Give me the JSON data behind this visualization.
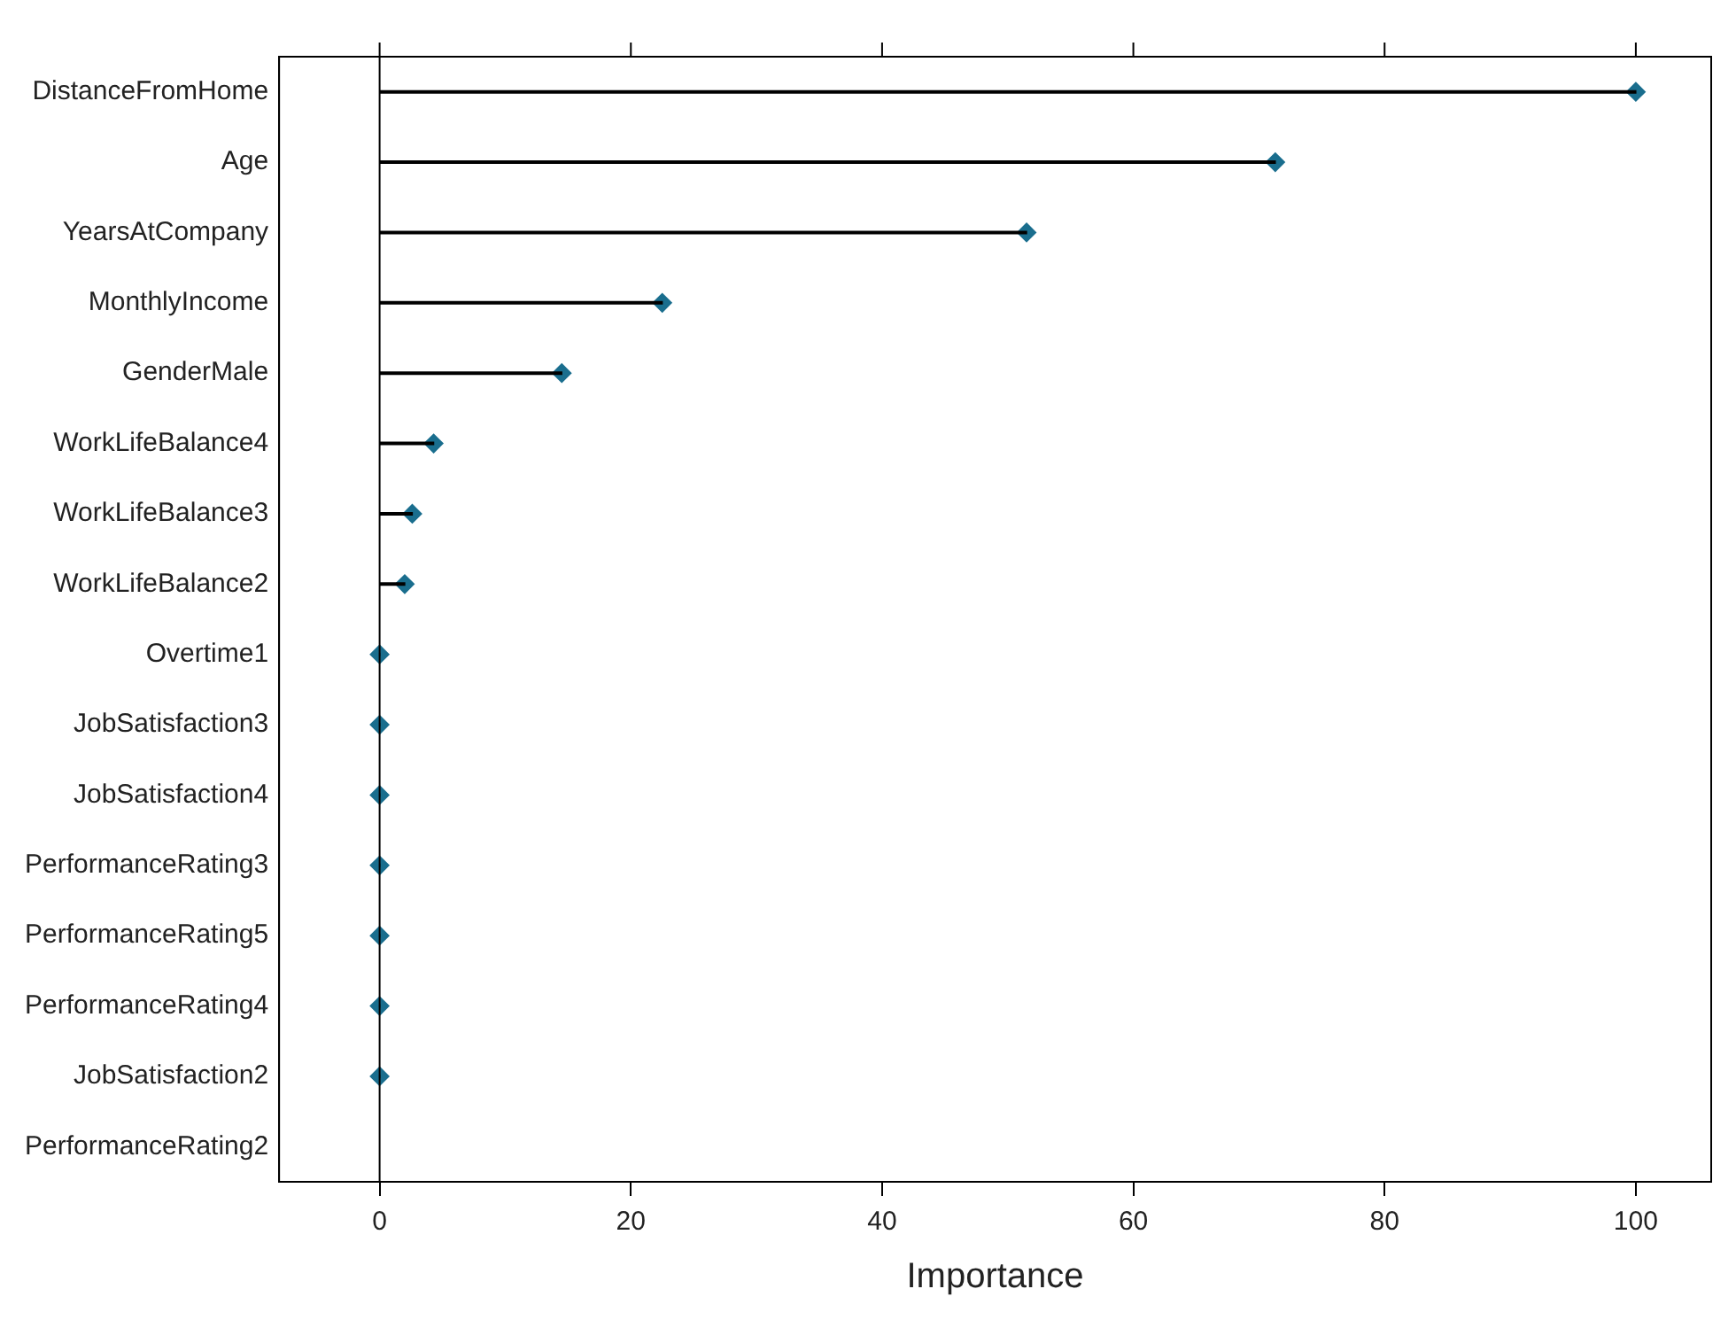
{
  "chart_data": {
    "type": "lollipop",
    "orientation": "horizontal",
    "xlabel": "Importance",
    "categories": [
      "DistanceFromHome",
      "Age",
      "YearsAtCompany",
      "MonthlyIncome",
      "GenderMale",
      "WorkLifeBalance4",
      "WorkLifeBalance3",
      "WorkLifeBalance2",
      "Overtime1",
      "JobSatisfaction3",
      "JobSatisfaction4",
      "PerformanceRating3",
      "PerformanceRating5",
      "PerformanceRating4",
      "JobSatisfaction2",
      "PerformanceRating2"
    ],
    "values": [
      100,
      71.3,
      51.5,
      22.5,
      14.5,
      4.3,
      2.6,
      2,
      0,
      0,
      0,
      0,
      0,
      0,
      0,
      null
    ],
    "color": "#1a6e8e",
    "marker": "diamond",
    "grid": false,
    "legend": false,
    "xlim": [
      -8,
      106
    ],
    "xticks": [
      0,
      20,
      40,
      60,
      80,
      100
    ],
    "ref_lines": [
      {
        "axis": "x",
        "value": 0,
        "color": "#000000"
      }
    ]
  }
}
